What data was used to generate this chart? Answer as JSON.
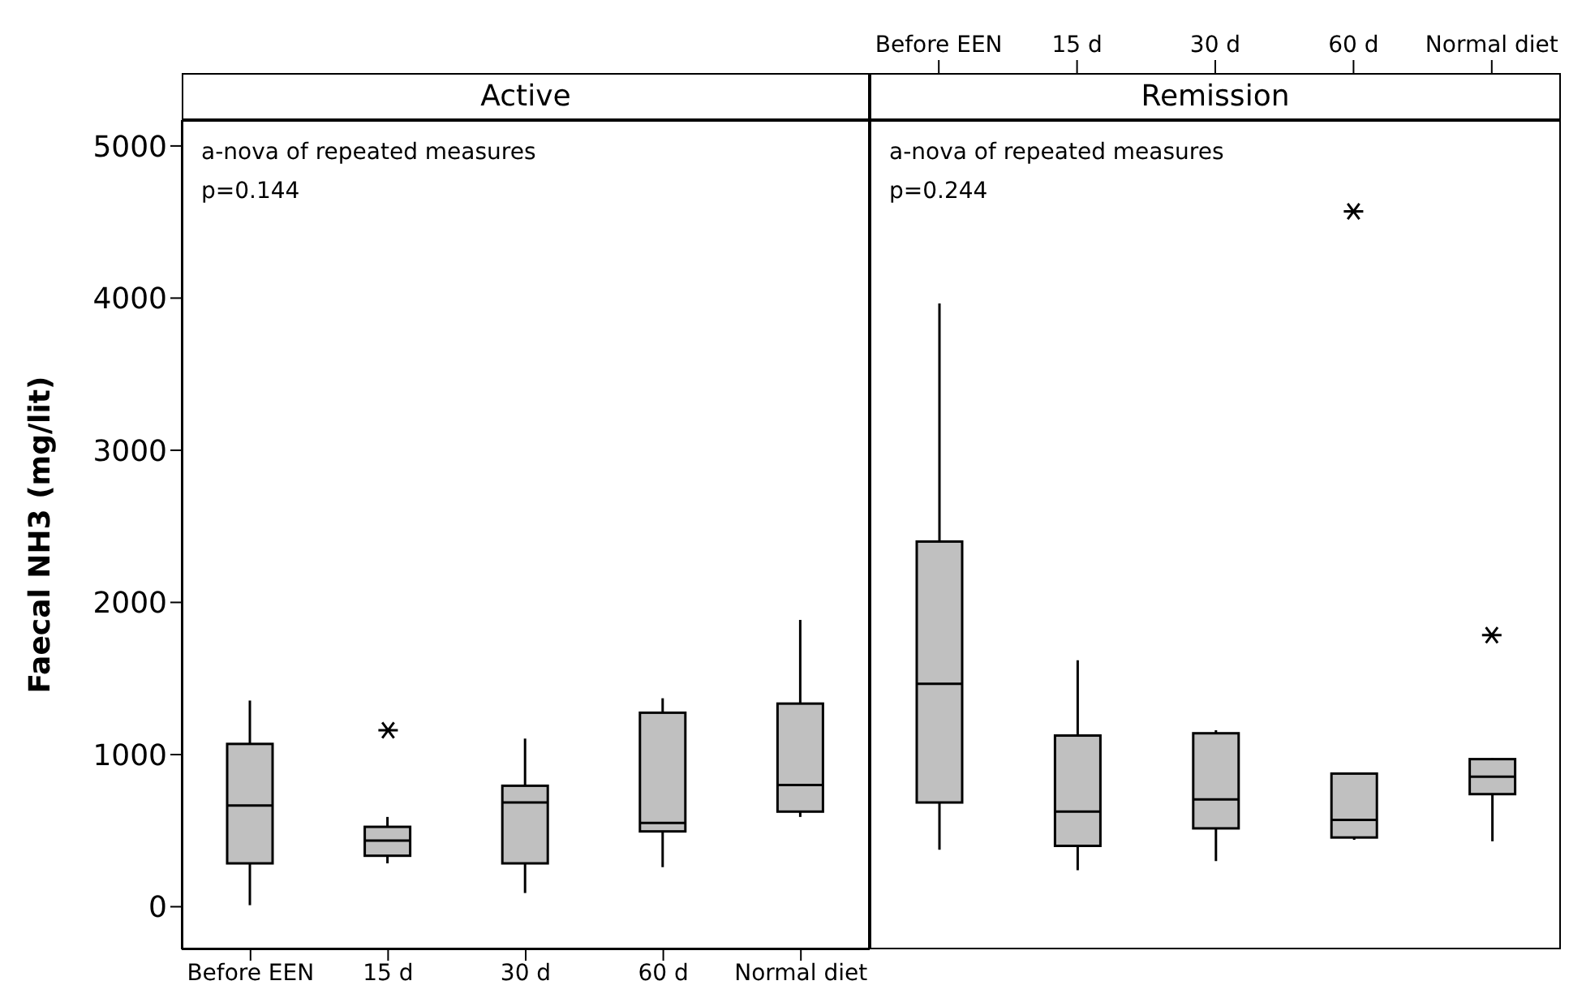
{
  "chart_data": [
    {
      "type": "box",
      "title": "Active",
      "ylabel": "Faecal NH3 (mg/lit)",
      "annotations": [
        "a-nova of repeated measures",
        "p=0.144"
      ],
      "categories": [
        "Before EEN",
        "15 d",
        "30 d",
        "60 d",
        "Normal diet"
      ],
      "color": "#c0c0c0",
      "boxes": [
        {
          "low": 10,
          "q1": 285,
          "median": 665,
          "q3": 1070,
          "high": 1355
        },
        {
          "low": 285,
          "q1": 335,
          "median": 435,
          "q3": 525,
          "high": 590,
          "outliers": [
            1160
          ]
        },
        {
          "low": 90,
          "q1": 285,
          "median": 685,
          "q3": 795,
          "high": 1105
        },
        {
          "low": 260,
          "q1": 495,
          "median": 550,
          "q3": 1275,
          "high": 1370
        },
        {
          "low": 590,
          "q1": 625,
          "median": 800,
          "q3": 1335,
          "high": 1885
        }
      ],
      "ylim": [
        -280,
        5170
      ],
      "yticks": [
        0,
        1000,
        2000,
        3000,
        4000,
        5000
      ],
      "marker": "star"
    },
    {
      "type": "box",
      "title": "Remission",
      "annotations": [
        "a-nova of repeated measures",
        "p=0.244"
      ],
      "categories": [
        "Before EEN",
        "15 d",
        "30 d",
        "60 d",
        "Normal diet"
      ],
      "color": "#c0c0c0",
      "tick_labels": "x",
      "boxes": [
        {
          "low": 375,
          "q1": 685,
          "median": 1465,
          "q3": 2400,
          "high": 3965
        },
        {
          "low": 240,
          "q1": 400,
          "median": 625,
          "q3": 1125,
          "high": 1620
        },
        {
          "low": 300,
          "q1": 515,
          "median": 705,
          "q3": 1140,
          "high": 1160
        },
        {
          "low": 440,
          "q1": 455,
          "median": 570,
          "q3": 875,
          "high": 880,
          "outliers": [
            4570
          ]
        },
        {
          "low": 430,
          "q1": 740,
          "median": 855,
          "q3": 970,
          "high": 975,
          "outliers": [
            1785
          ]
        }
      ],
      "ylim": [
        -280,
        5170
      ],
      "yticks": [
        0,
        1000,
        2000,
        3000,
        4000,
        5000
      ],
      "marker": "star"
    }
  ]
}
